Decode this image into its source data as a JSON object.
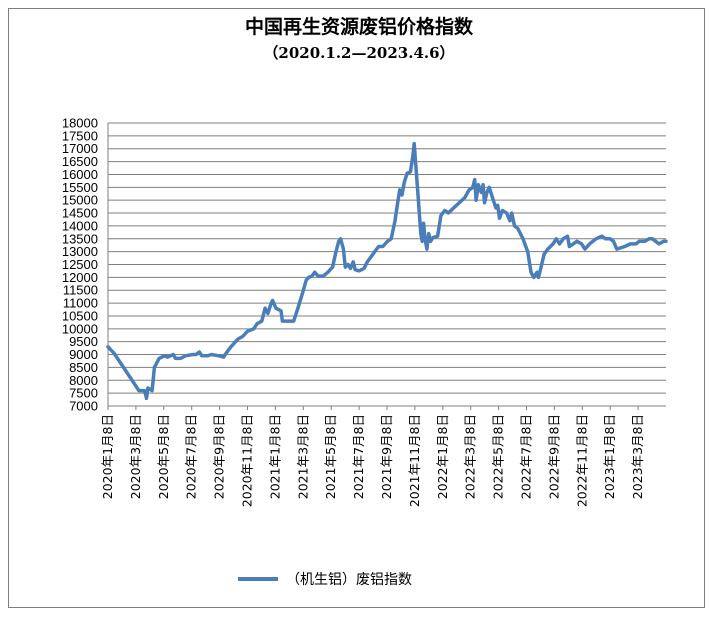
{
  "chart_data": {
    "type": "line",
    "title": "中国再生资源废铝价格指数",
    "subtitle": "（2020.1.2—2023.4.6）",
    "ylim": [
      7000,
      18000
    ],
    "ytick_step": 500,
    "grid": "horizontal",
    "legend_position": "bottom",
    "colors": {
      "series": "#4a7ebb",
      "grid": "#7f7f7f",
      "axis": "#7f7f7f"
    },
    "x_tick_labels": [
      "2020年1月8日",
      "2020年3月8日",
      "2020年5月8日",
      "2020年7月8日",
      "2020年9月8日",
      "2020年11月8日",
      "2021年1月8日",
      "2021年3月8日",
      "2021年5月8日",
      "2021年7月8日",
      "2021年9月8日",
      "2021年11月8日",
      "2022年1月8日",
      "2022年3月8日",
      "2022年5月8日",
      "2022年7月8日",
      "2022年9月8日",
      "2022年11月8日",
      "2023年1月8日",
      "2023年3月8日"
    ],
    "series": [
      {
        "name": "（机生铝）废铝指数",
        "points": [
          [
            "2020-01-02",
            9300
          ],
          [
            "2020-01-15",
            9050
          ],
          [
            "2020-03-08",
            7600
          ],
          [
            "2020-03-20",
            7600
          ],
          [
            "2020-03-24",
            7300
          ],
          [
            "2020-03-27",
            7700
          ],
          [
            "2020-04-05",
            7600
          ],
          [
            "2020-04-10",
            8500
          ],
          [
            "2020-04-20",
            8850
          ],
          [
            "2020-05-01",
            8950
          ],
          [
            "2020-05-08",
            8900
          ],
          [
            "2020-05-20",
            9000
          ],
          [
            "2020-05-25",
            8850
          ],
          [
            "2020-06-05",
            8850
          ],
          [
            "2020-06-15",
            8950
          ],
          [
            "2020-07-01",
            9000
          ],
          [
            "2020-07-08",
            9000
          ],
          [
            "2020-07-15",
            9100
          ],
          [
            "2020-07-20",
            8950
          ],
          [
            "2020-08-01",
            8950
          ],
          [
            "2020-08-10",
            9000
          ],
          [
            "2020-08-25",
            8950
          ],
          [
            "2020-09-05",
            8900
          ],
          [
            "2020-09-08",
            9000
          ],
          [
            "2020-09-20",
            9300
          ],
          [
            "2020-09-25",
            9400
          ],
          [
            "2020-10-05",
            9600
          ],
          [
            "2020-10-15",
            9700
          ],
          [
            "2020-10-25",
            9900
          ],
          [
            "2020-11-08",
            10000
          ],
          [
            "2020-11-15",
            10200
          ],
          [
            "2020-11-25",
            10300
          ],
          [
            "2020-12-02",
            10800
          ],
          [
            "2020-12-08",
            10600
          ],
          [
            "2020-12-15",
            11000
          ],
          [
            "2020-12-18",
            11100
          ],
          [
            "2020-12-25",
            10800
          ],
          [
            "2021-01-05",
            10700
          ],
          [
            "2021-01-08",
            10300
          ],
          [
            "2021-01-15",
            10300
          ],
          [
            "2021-01-25",
            10300
          ],
          [
            "2021-02-01",
            10300
          ],
          [
            "2021-02-10",
            10800
          ],
          [
            "2021-02-20",
            11400
          ],
          [
            "2021-02-28",
            11900
          ],
          [
            "2021-03-05",
            12000
          ],
          [
            "2021-03-12",
            12050
          ],
          [
            "2021-03-18",
            12200
          ],
          [
            "2021-03-25",
            12050
          ],
          [
            "2021-04-05",
            12050
          ],
          [
            "2021-04-15",
            12200
          ],
          [
            "2021-04-25",
            12400
          ],
          [
            "2021-05-01",
            12900
          ],
          [
            "2021-05-08",
            13400
          ],
          [
            "2021-05-12",
            13500
          ],
          [
            "2021-05-18",
            13100
          ],
          [
            "2021-05-22",
            12400
          ],
          [
            "2021-05-28",
            12500
          ],
          [
            "2021-06-02",
            12350
          ],
          [
            "2021-06-08",
            12600
          ],
          [
            "2021-06-12",
            12300
          ],
          [
            "2021-06-20",
            12250
          ],
          [
            "2021-07-01",
            12350
          ],
          [
            "2021-07-08",
            12600
          ],
          [
            "2021-07-20",
            12900
          ],
          [
            "2021-08-01",
            13200
          ],
          [
            "2021-08-10",
            13200
          ],
          [
            "2021-08-20",
            13400
          ],
          [
            "2021-08-28",
            13500
          ],
          [
            "2021-09-05",
            14200
          ],
          [
            "2021-09-10",
            14800
          ],
          [
            "2021-09-15",
            15400
          ],
          [
            "2021-09-20",
            15200
          ],
          [
            "2021-09-25",
            15700
          ],
          [
            "2021-10-01",
            16050
          ],
          [
            "2021-10-08",
            16100
          ],
          [
            "2021-10-13",
            16700
          ],
          [
            "2021-10-16",
            17200
          ],
          [
            "2021-10-20",
            16200
          ],
          [
            "2021-10-25",
            15000
          ],
          [
            "2021-10-30",
            13700
          ],
          [
            "2021-11-02",
            13400
          ],
          [
            "2021-11-05",
            14100
          ],
          [
            "2021-11-08",
            13500
          ],
          [
            "2021-11-12",
            13100
          ],
          [
            "2021-11-16",
            13700
          ],
          [
            "2021-11-20",
            13400
          ],
          [
            "2021-11-25",
            13550
          ],
          [
            "2021-12-05",
            13600
          ],
          [
            "2021-12-12",
            14400
          ],
          [
            "2021-12-20",
            14600
          ],
          [
            "2021-12-28",
            14500
          ],
          [
            "2022-01-08",
            14700
          ],
          [
            "2022-01-20",
            14900
          ],
          [
            "2022-02-01",
            15100
          ],
          [
            "2022-02-10",
            15400
          ],
          [
            "2022-02-18",
            15500
          ],
          [
            "2022-02-22",
            15800
          ],
          [
            "2022-02-25",
            15000
          ],
          [
            "2022-03-02",
            15600
          ],
          [
            "2022-03-08",
            15300
          ],
          [
            "2022-03-12",
            15600
          ],
          [
            "2022-03-15",
            14900
          ],
          [
            "2022-03-20",
            15300
          ],
          [
            "2022-03-25",
            15500
          ],
          [
            "2022-04-01",
            15100
          ],
          [
            "2022-04-08",
            14700
          ],
          [
            "2022-04-12",
            14800
          ],
          [
            "2022-04-16",
            14300
          ],
          [
            "2022-04-22",
            14600
          ],
          [
            "2022-05-01",
            14500
          ],
          [
            "2022-05-08",
            14200
          ],
          [
            "2022-05-12",
            14500
          ],
          [
            "2022-05-18",
            14000
          ],
          [
            "2022-05-25",
            13900
          ],
          [
            "2022-06-05",
            13500
          ],
          [
            "2022-06-15",
            13000
          ],
          [
            "2022-06-22",
            12200
          ],
          [
            "2022-06-28",
            12000
          ],
          [
            "2022-07-05",
            12200
          ],
          [
            "2022-07-08",
            12000
          ],
          [
            "2022-07-15",
            12500
          ],
          [
            "2022-07-20",
            12900
          ],
          [
            "2022-07-28",
            13100
          ],
          [
            "2022-08-08",
            13300
          ],
          [
            "2022-08-15",
            13500
          ],
          [
            "2022-08-22",
            13300
          ],
          [
            "2022-08-30",
            13500
          ],
          [
            "2022-09-08",
            13600
          ],
          [
            "2022-09-12",
            13200
          ],
          [
            "2022-09-20",
            13300
          ],
          [
            "2022-09-28",
            13400
          ],
          [
            "2022-10-08",
            13300
          ],
          [
            "2022-10-15",
            13100
          ],
          [
            "2022-10-25",
            13300
          ],
          [
            "2022-11-08",
            13500
          ],
          [
            "2022-11-20",
            13600
          ],
          [
            "2022-11-28",
            13500
          ],
          [
            "2022-12-08",
            13500
          ],
          [
            "2022-12-15",
            13400
          ],
          [
            "2022-12-22",
            13100
          ],
          [
            "2023-01-08",
            13200
          ],
          [
            "2023-01-20",
            13300
          ],
          [
            "2023-02-01",
            13300
          ],
          [
            "2023-02-08",
            13400
          ],
          [
            "2023-02-20",
            13400
          ],
          [
            "2023-03-01",
            13500
          ],
          [
            "2023-03-08",
            13500
          ],
          [
            "2023-03-15",
            13400
          ],
          [
            "2023-03-22",
            13300
          ],
          [
            "2023-04-01",
            13400
          ],
          [
            "2023-04-06",
            13400
          ]
        ]
      }
    ]
  }
}
